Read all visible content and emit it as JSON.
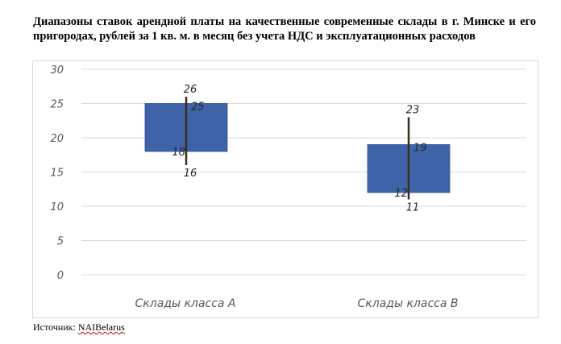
{
  "title": "Диапазоны ставок арендной платы на качественные современные склады в г. Минске и его пригородах, рублей за 1 кв. м. в месяц без учета НДС и эксплуатационных расходов",
  "source": {
    "prefix": "Источник: ",
    "name": "NAIBelarus"
  },
  "colors": {
    "box": "#3e63a8",
    "whisker": "#3b2f1c",
    "grid": "#d9d9d9",
    "axis_text": "#595959"
  },
  "chart_data": {
    "type": "bar",
    "subtype": "floating-range-with-whiskers",
    "categories": [
      "Склады класса A",
      "Склады класса B"
    ],
    "series": [
      {
        "values": [
          {
            "min": 16,
            "low": 18,
            "high": 25,
            "max": 26
          },
          {
            "min": 11,
            "low": 12,
            "high": 19,
            "max": 23
          }
        ]
      }
    ],
    "ylim": [
      0,
      30
    ],
    "yticks": [
      0,
      5,
      10,
      15,
      20,
      25,
      30
    ],
    "grid": true,
    "legend": "none"
  }
}
